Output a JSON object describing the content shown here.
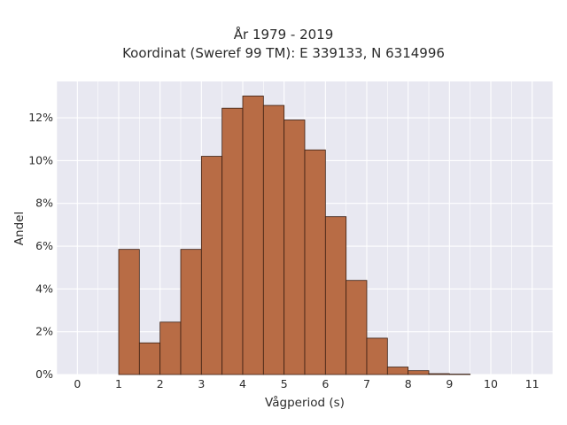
{
  "chart_data": {
    "type": "bar",
    "title": "År 1979 - 2019",
    "subtitle": "Koordinat (Sweref 99 TM): E 339133, N 6314996",
    "xlabel": "Vågperiod (s)",
    "ylabel": "Andel",
    "xlim": [
      -0.5,
      11.5
    ],
    "ylim": [
      0,
      0.137
    ],
    "x_ticks": [
      0,
      1,
      2,
      3,
      4,
      5,
      6,
      7,
      8,
      9,
      10,
      11
    ],
    "y_ticks": [
      0,
      0.02,
      0.04,
      0.06,
      0.08,
      0.1,
      0.12
    ],
    "y_tick_labels": [
      "0%",
      "2%",
      "4%",
      "6%",
      "8%",
      "10%",
      "12%"
    ],
    "bin_width": 0.5,
    "bins": [
      {
        "x0": 1.0,
        "x1": 1.5,
        "value": 0.0585
      },
      {
        "x0": 1.5,
        "x1": 2.0,
        "value": 0.0148
      },
      {
        "x0": 2.0,
        "x1": 2.5,
        "value": 0.0245
      },
      {
        "x0": 2.5,
        "x1": 3.0,
        "value": 0.0585
      },
      {
        "x0": 3.0,
        "x1": 3.5,
        "value": 0.102
      },
      {
        "x0": 3.5,
        "x1": 4.0,
        "value": 0.1245
      },
      {
        "x0": 4.0,
        "x1": 4.5,
        "value": 0.1302
      },
      {
        "x0": 4.5,
        "x1": 5.0,
        "value": 0.1258
      },
      {
        "x0": 5.0,
        "x1": 5.5,
        "value": 0.119
      },
      {
        "x0": 5.5,
        "x1": 6.0,
        "value": 0.105
      },
      {
        "x0": 6.0,
        "x1": 6.5,
        "value": 0.0738
      },
      {
        "x0": 6.5,
        "x1": 7.0,
        "value": 0.044
      },
      {
        "x0": 7.0,
        "x1": 7.5,
        "value": 0.017
      },
      {
        "x0": 7.5,
        "x1": 8.0,
        "value": 0.0035
      },
      {
        "x0": 8.0,
        "x1": 8.5,
        "value": 0.0018
      },
      {
        "x0": 8.5,
        "x1": 9.0,
        "value": 0.0004
      },
      {
        "x0": 9.0,
        "x1": 9.5,
        "value": 0.0002
      }
    ],
    "grid": true,
    "legend": false,
    "colors": {
      "bar_fill": "#b86c45",
      "bar_stroke": "#3a1f12",
      "plot_bg": "#e8e8f1",
      "grid": "#ffffff"
    }
  }
}
